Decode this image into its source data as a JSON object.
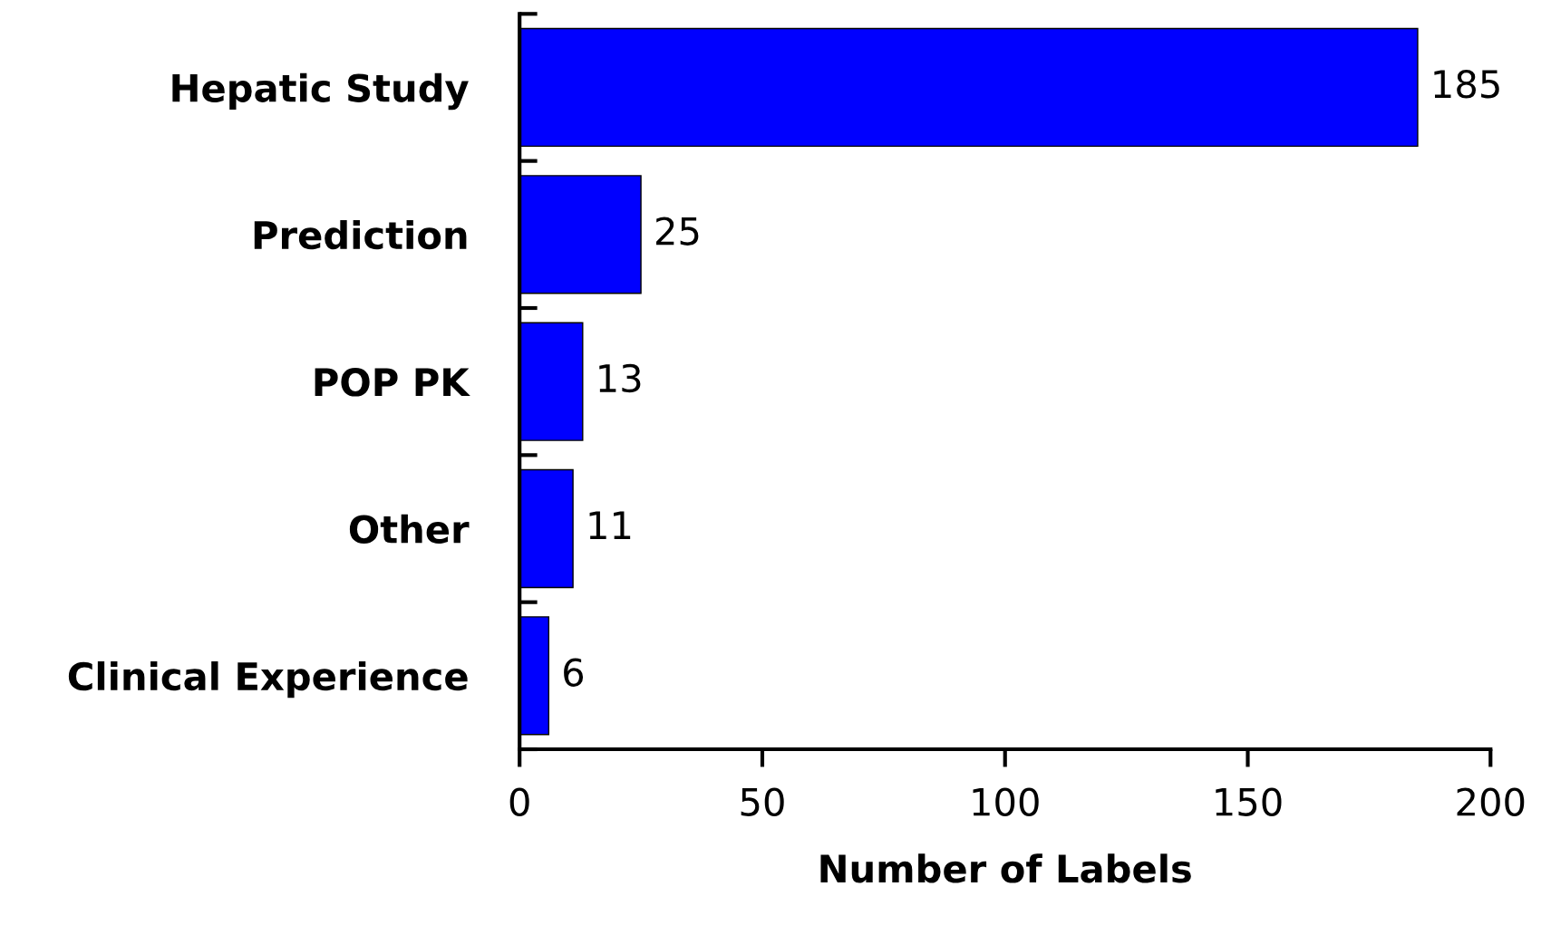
{
  "chart_data": {
    "type": "bar",
    "orientation": "horizontal",
    "xlabel": "Number of Labels",
    "categories": [
      "Hepatic Study",
      "Prediction",
      "POP PK",
      "Other",
      "Clinical Experience"
    ],
    "values": [
      185,
      25,
      13,
      11,
      6
    ],
    "color": "#0000ff",
    "xlim": [
      0,
      200
    ],
    "xticks": [
      0,
      50,
      100,
      150,
      200
    ],
    "data_labels": true,
    "grid": false,
    "legend": false
  }
}
